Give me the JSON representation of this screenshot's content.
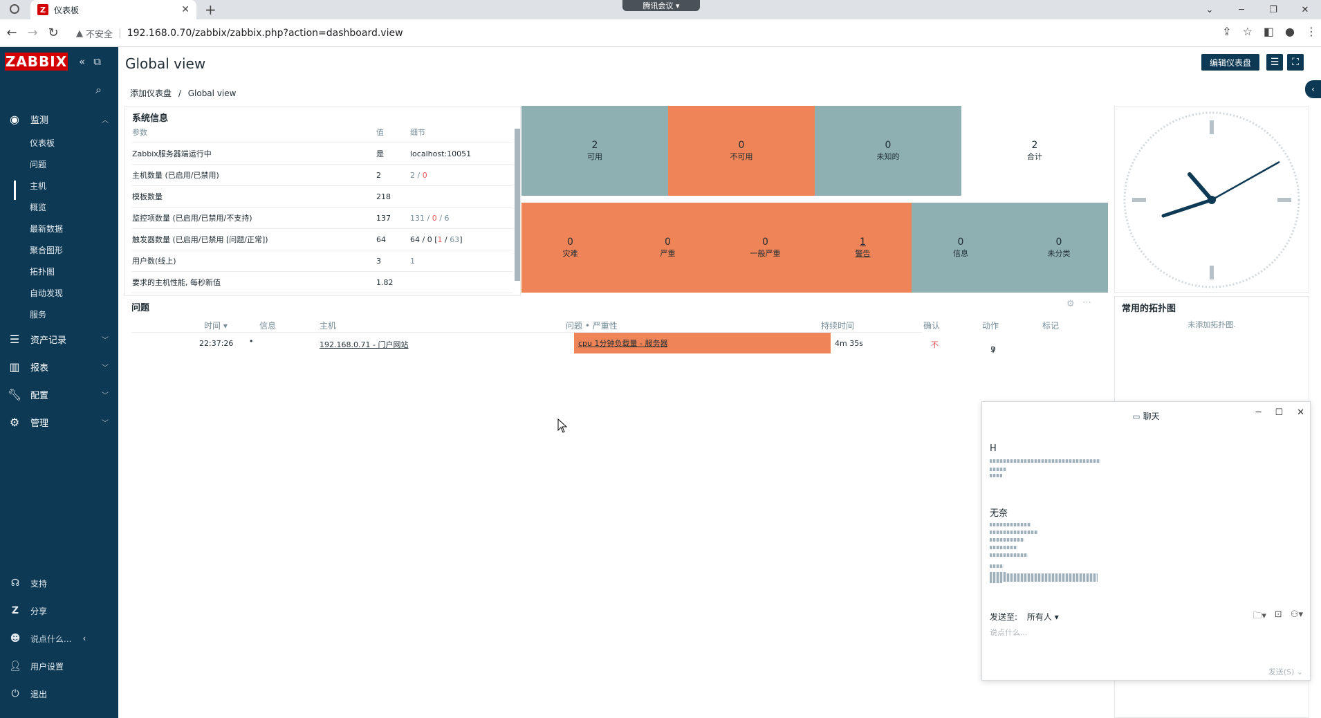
{
  "browser": {
    "tab_title": "仪表板",
    "favicon_letter": "Z",
    "meeting_badge": "腾讯会议",
    "not_secure": "不安全",
    "url": "192.168.0.70/zabbix/zabbix.php?action=dashboard.view"
  },
  "sidebar": {
    "logo": "ZABBIX",
    "sections": [
      {
        "label": "监测",
        "icon": "eye-icon"
      },
      {
        "label": "资产记录",
        "icon": "list-icon"
      },
      {
        "label": "报表",
        "icon": "chart-icon"
      },
      {
        "label": "配置",
        "icon": "wrench-icon"
      },
      {
        "label": "管理",
        "icon": "gear-icon"
      }
    ],
    "monitoring_items": [
      "仪表板",
      "问题",
      "主机",
      "概览",
      "最新数据",
      "聚合图形",
      "拓扑图",
      "自动发现",
      "服务"
    ],
    "footer": [
      "支持",
      "分享",
      "说点什么...",
      "用户设置",
      "退出"
    ]
  },
  "header": {
    "title": "Global view",
    "edit_button": "编辑仪表盘",
    "breadcrumb_1": "添加仪表盘",
    "breadcrumb_sep": "/",
    "breadcrumb_2": "Global view"
  },
  "sysinfo": {
    "title": "系统信息",
    "headers": [
      "参数",
      "值",
      "细节"
    ],
    "rows": [
      {
        "param": "Zabbix服务器端运行中",
        "value": "是",
        "detail": "localhost:10051"
      },
      {
        "param": "主机数量 (已启用/已禁用)",
        "value": "2",
        "d1": "2",
        "d2": "0"
      },
      {
        "param": "模板数量",
        "value": "218",
        "detail": ""
      },
      {
        "param": "监控项数量 (已启用/已禁用/不支持)",
        "value": "137",
        "d1": "131",
        "d2": "0",
        "d3": "6"
      },
      {
        "param": "触发器数量 (已启用/已禁用 [问题/正常])",
        "value": "64",
        "d1": "64 / 0 [",
        "d2": "1",
        "d3": "63",
        "d4": "]"
      },
      {
        "param": "用户数(线上)",
        "value": "3",
        "detail": "1"
      },
      {
        "param": "要求的主机性能, 每秒新值",
        "value": "1.82",
        "detail": ""
      }
    ]
  },
  "host_availability": [
    {
      "count": "2",
      "label": "可用"
    },
    {
      "count": "0",
      "label": "不可用"
    },
    {
      "count": "0",
      "label": "未知的"
    },
    {
      "count": "2",
      "label": "合计"
    }
  ],
  "problems_by_severity": [
    {
      "count": "0",
      "label": "灾难"
    },
    {
      "count": "0",
      "label": "严重"
    },
    {
      "count": "0",
      "label": "一般严重"
    },
    {
      "count": "1",
      "label": "警告"
    },
    {
      "count": "0",
      "label": "信息"
    },
    {
      "count": "0",
      "label": "未分类"
    }
  ],
  "problems": {
    "title": "问题",
    "headers": [
      "时间 ▾",
      "信息",
      "主机",
      "问题 • 严重性",
      "持续时间",
      "确认",
      "动作",
      "标记"
    ],
    "rows": [
      {
        "time": "22:37:26",
        "host": "192.168.0.71 - 门户网站",
        "problem": "cpu 1分钟负载量 - 服务器",
        "duration": "4m 35s",
        "ack": "不",
        "actions": "3"
      }
    ]
  },
  "maps": {
    "title": "常用的拓扑图",
    "empty": "未添加拓扑图."
  },
  "chat": {
    "title": "聊天",
    "sender1": "H",
    "sender2": "无奈",
    "send_to_label": "发送至:",
    "send_to_value": "所有人",
    "input_placeholder": "说点什么...",
    "send_button": "发送(S)"
  }
}
